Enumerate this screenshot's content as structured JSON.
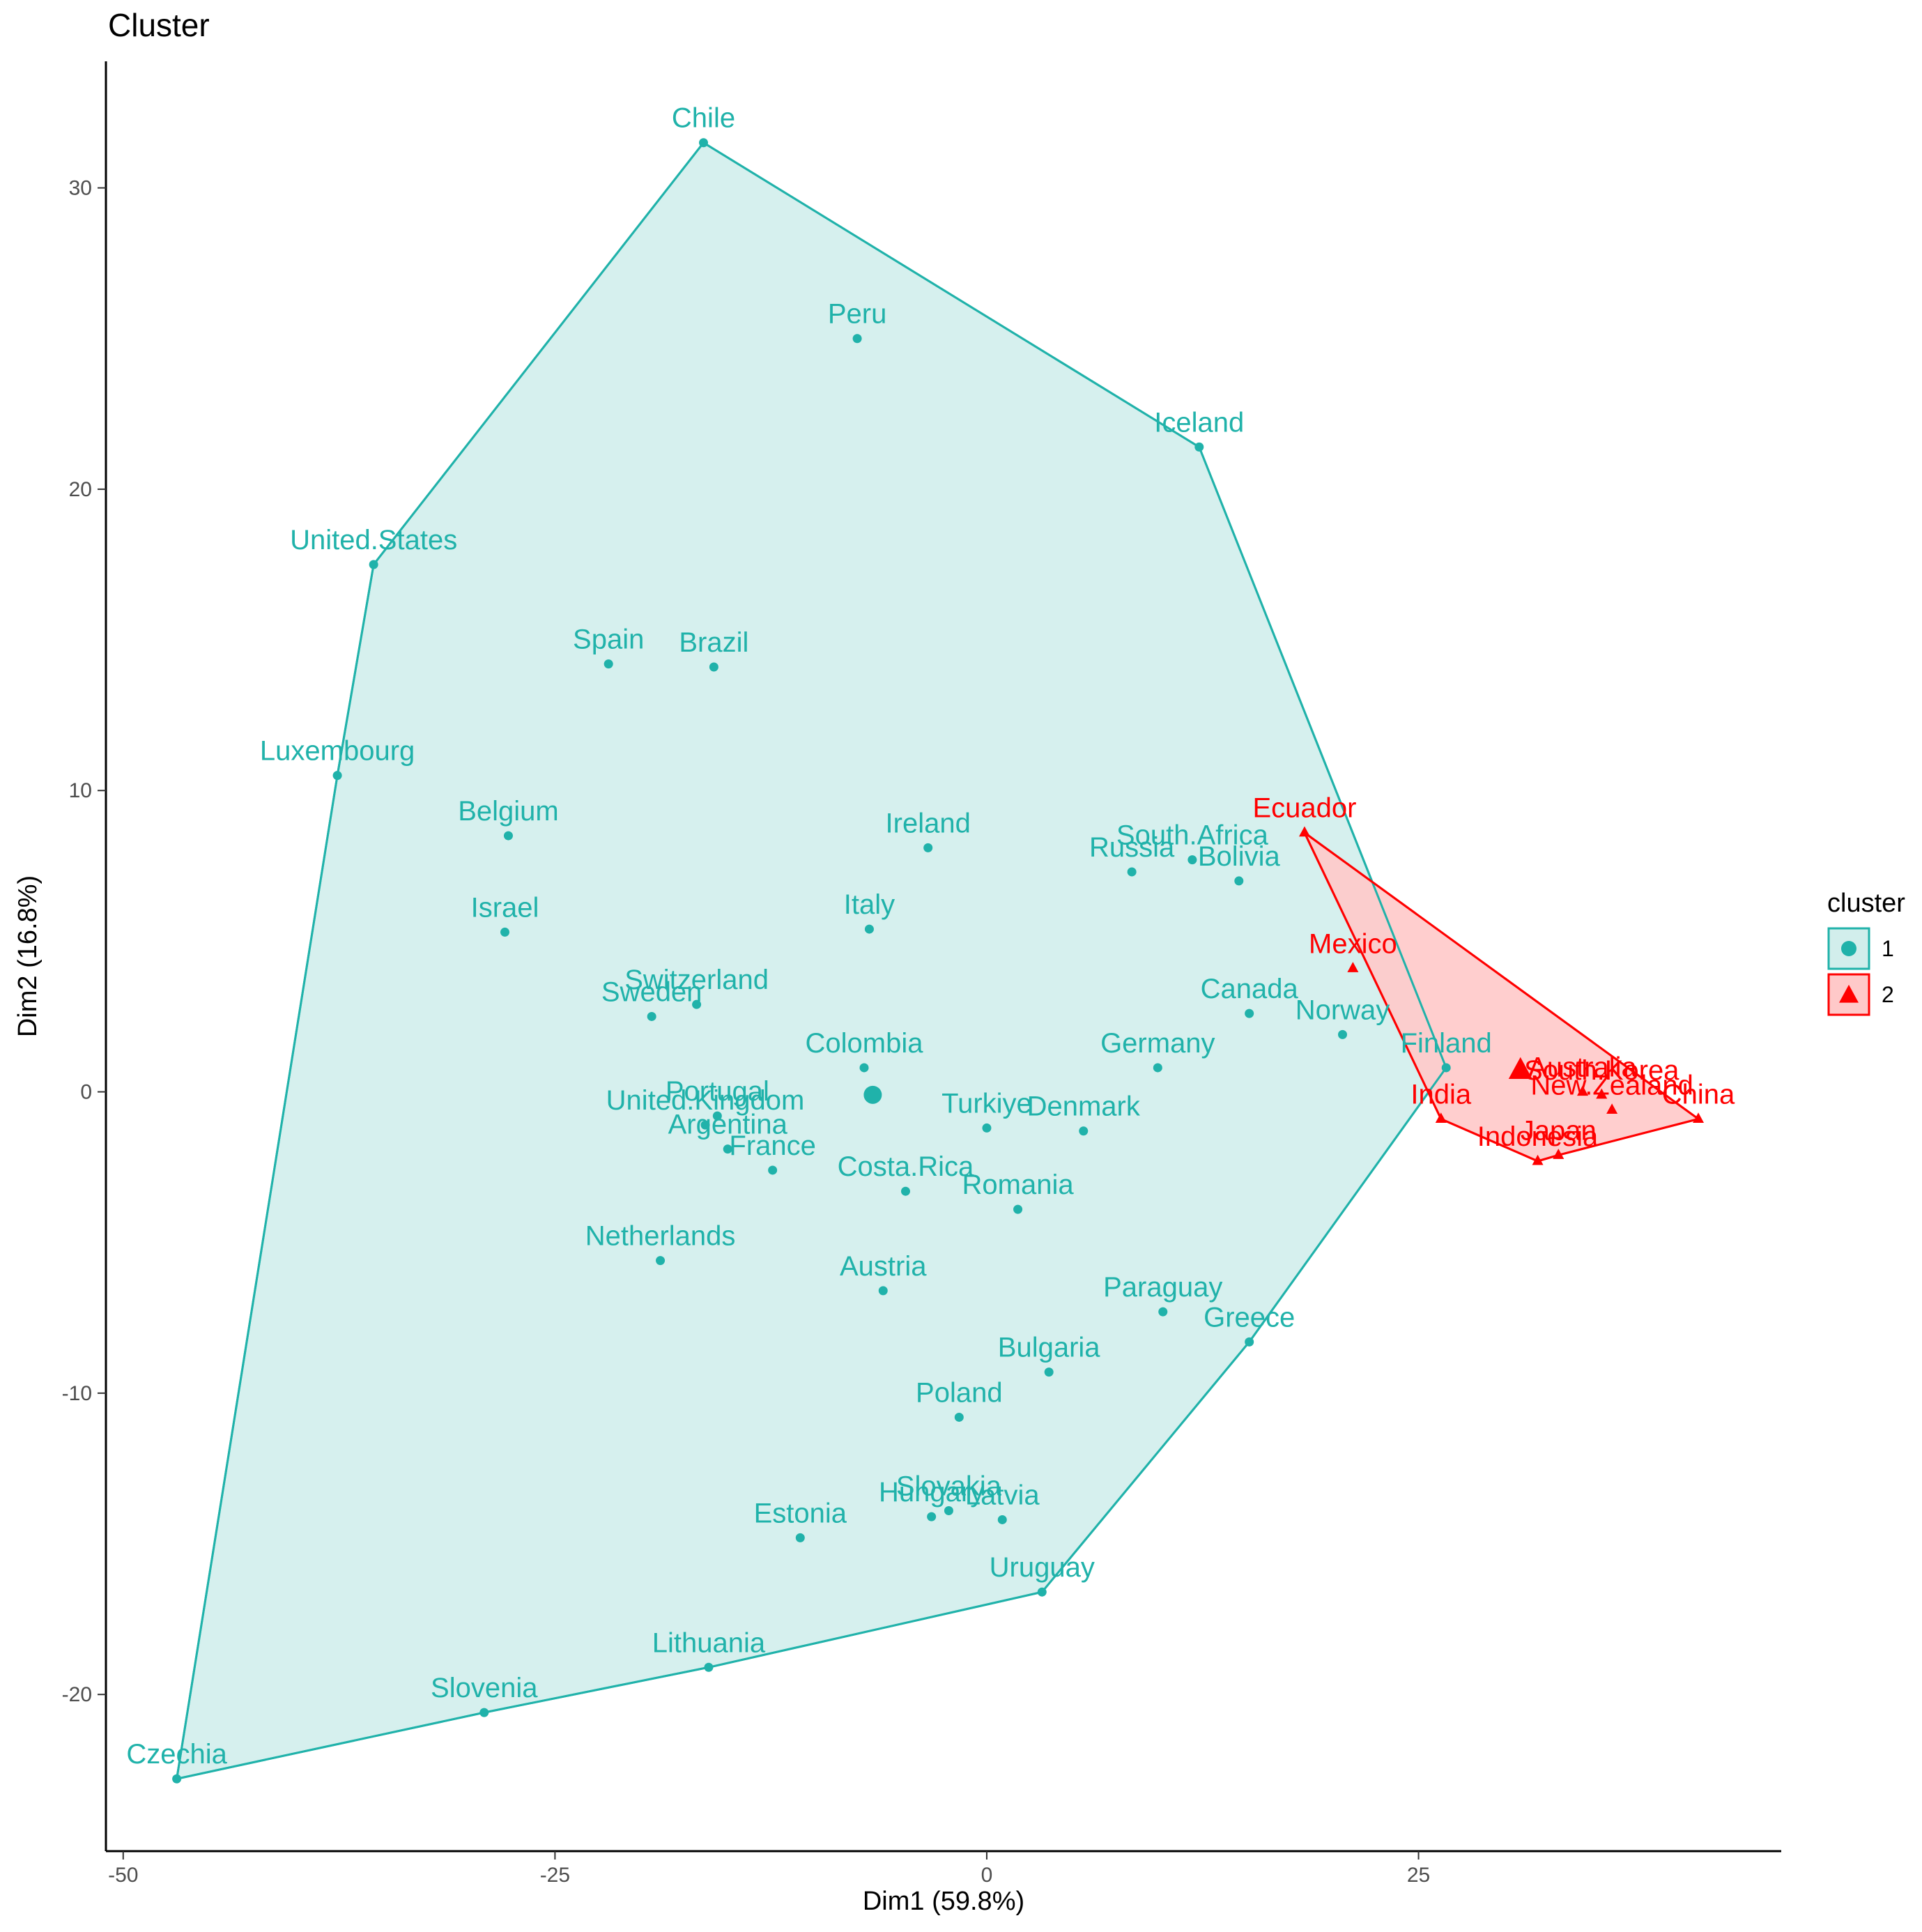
{
  "chart_data": {
    "type": "scatter",
    "title": "Cluster",
    "xlabel": "Dim1 (59.8%)",
    "ylabel": "Dim2 (16.8%)",
    "xlim": [
      -51,
      46
    ],
    "ylim": [
      -25.2,
      34.2
    ],
    "xticks": [
      -50,
      -25,
      0,
      25
    ],
    "yticks": [
      -20,
      -10,
      0,
      10,
      20,
      30
    ],
    "grid": false,
    "legend": {
      "title": "cluster",
      "position": "right",
      "entries": [
        {
          "label": "1",
          "shape": "circle",
          "color": "#20B2AA"
        },
        {
          "label": "2",
          "shape": "triangle",
          "color": "#FF0000"
        }
      ]
    },
    "series": [
      {
        "cluster": "1",
        "color": "#20B2AA",
        "fill": "#D2EEEC",
        "shape": "circle",
        "points": [
          {
            "name": "Chile",
            "x": -16.4,
            "y": 31.5
          },
          {
            "name": "Peru",
            "x": -7.5,
            "y": 25.0
          },
          {
            "name": "Iceland",
            "x": 12.3,
            "y": 21.4
          },
          {
            "name": "United.States",
            "x": -35.5,
            "y": 17.5
          },
          {
            "name": "Spain",
            "x": -21.9,
            "y": 14.2
          },
          {
            "name": "Brazil",
            "x": -15.8,
            "y": 14.1
          },
          {
            "name": "Luxembourg",
            "x": -37.6,
            "y": 10.5
          },
          {
            "name": "Belgium",
            "x": -27.7,
            "y": 8.5
          },
          {
            "name": "Ireland",
            "x": -3.4,
            "y": 8.1
          },
          {
            "name": "South.Africa",
            "x": 11.9,
            "y": 7.7
          },
          {
            "name": "Russia",
            "x": 8.4,
            "y": 7.3
          },
          {
            "name": "Bolivia",
            "x": 14.6,
            "y": 7.0
          },
          {
            "name": "Israel",
            "x": -27.9,
            "y": 5.3
          },
          {
            "name": "Italy",
            "x": -6.8,
            "y": 5.4
          },
          {
            "name": "Canada",
            "x": 15.2,
            "y": 2.6
          },
          {
            "name": "Switzerland",
            "x": -16.8,
            "y": 2.9
          },
          {
            "name": "Sweden",
            "x": -19.4,
            "y": 2.5
          },
          {
            "name": "Norway",
            "x": 20.6,
            "y": 1.9
          },
          {
            "name": "Finland",
            "x": 26.6,
            "y": 0.8
          },
          {
            "name": "Colombia",
            "x": -7.1,
            "y": 0.8
          },
          {
            "name": "Germany",
            "x": 9.9,
            "y": 0.8
          },
          {
            "name": "Portugal",
            "x": -15.6,
            "y": -0.8
          },
          {
            "name": "United.Kingdom",
            "x": -16.3,
            "y": -1.1
          },
          {
            "name": "Turkiye",
            "x": 0.0,
            "y": -1.2
          },
          {
            "name": "Denmark",
            "x": 5.6,
            "y": -1.3
          },
          {
            "name": "Argentina",
            "x": -15.0,
            "y": -1.9
          },
          {
            "name": "France",
            "x": -12.4,
            "y": -2.6
          },
          {
            "name": "Costa.Rica",
            "x": -4.7,
            "y": -3.3
          },
          {
            "name": "Romania",
            "x": 1.8,
            "y": -3.9
          },
          {
            "name": "Netherlands",
            "x": -18.9,
            "y": -5.6
          },
          {
            "name": "Austria",
            "x": -6.0,
            "y": -6.6
          },
          {
            "name": "Paraguay",
            "x": 10.2,
            "y": -7.3
          },
          {
            "name": "Greece",
            "x": 15.2,
            "y": -8.3
          },
          {
            "name": "Bulgaria",
            "x": 3.6,
            "y": -9.3
          },
          {
            "name": "Poland",
            "x": -1.6,
            "y": -10.8
          },
          {
            "name": "Slovakia",
            "x": -2.2,
            "y": -13.9
          },
          {
            "name": "Hungary",
            "x": -3.2,
            "y": -14.1
          },
          {
            "name": "Latvia",
            "x": 0.9,
            "y": -14.2
          },
          {
            "name": "Estonia",
            "x": -10.8,
            "y": -14.8
          },
          {
            "name": "Uruguay",
            "x": 3.2,
            "y": -16.6
          },
          {
            "name": "Lithuania",
            "x": -16.1,
            "y": -19.1
          },
          {
            "name": "Slovenia",
            "x": -29.1,
            "y": -20.6
          },
          {
            "name": "Czechia",
            "x": -46.9,
            "y": -22.8
          }
        ],
        "centroid": {
          "x": -6.6,
          "y": -0.1
        },
        "hull": [
          "Chile",
          "Iceland",
          "Finland",
          "Greece",
          "Uruguay",
          "Lithuania",
          "Slovenia",
          "Czechia",
          "Luxembourg",
          "United.States"
        ]
      },
      {
        "cluster": "2",
        "color": "#FF0000",
        "fill": "#FFC9C9",
        "shape": "triangle",
        "points": [
          {
            "name": "Ecuador",
            "x": 18.4,
            "y": 8.6
          },
          {
            "name": "Mexico",
            "x": 21.2,
            "y": 4.1
          },
          {
            "name": "Australia",
            "x": 34.5,
            "y": 0.0
          },
          {
            "name": "South.Korea",
            "x": 35.6,
            "y": -0.1
          },
          {
            "name": "New.Zealand",
            "x": 36.2,
            "y": -0.6
          },
          {
            "name": "India",
            "x": 26.3,
            "y": -0.9
          },
          {
            "name": "China",
            "x": 41.2,
            "y": -0.9
          },
          {
            "name": "Japan",
            "x": 33.1,
            "y": -2.1
          },
          {
            "name": "Indonesia",
            "x": 31.9,
            "y": -2.3
          }
        ],
        "centroid": {
          "x": 30.9,
          "y": 0.7
        },
        "hull": [
          "Ecuador",
          "China",
          "Japan",
          "Indonesia",
          "India"
        ]
      }
    ]
  }
}
